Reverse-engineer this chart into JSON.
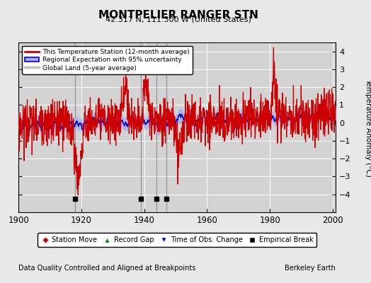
{
  "title": "MONTPELIER RANGER STN",
  "subtitle": "42.317 N, 111.300 W (United States)",
  "xlabel_left": "Data Quality Controlled and Aligned at Breakpoints",
  "xlabel_right": "Berkeley Earth",
  "ylabel": "Temperature Anomaly (°C)",
  "xlim": [
    1900,
    2001
  ],
  "ylim": [
    -5,
    4.5
  ],
  "yticks": [
    -4,
    -3,
    -2,
    -1,
    0,
    1,
    2,
    3,
    4
  ],
  "xticks": [
    1900,
    1920,
    1940,
    1960,
    1980,
    2000
  ],
  "bg_color": "#e8e8e8",
  "plot_bg_color": "#d3d3d3",
  "vertical_lines": [
    1918,
    1939,
    1944,
    1947
  ],
  "empirical_breaks": [
    1918,
    1939,
    1944,
    1947
  ],
  "red_line_color": "#cc0000",
  "blue_line_color": "#0000cc",
  "blue_fill_color": "#aaaaee",
  "gray_line_color": "#c0c0c0",
  "grid_color": "#ffffff",
  "vline_color": "#888888",
  "n_points": 1200,
  "year_start": 1900,
  "year_end": 2001
}
